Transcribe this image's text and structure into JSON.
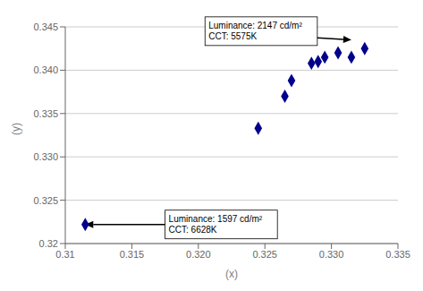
{
  "chart_data": {
    "type": "scatter",
    "x_label": "(x)",
    "y_label": "(y)",
    "x": [
      0.3115,
      0.3245,
      0.3265,
      0.327,
      0.3285,
      0.329,
      0.3295,
      0.3305,
      0.3315,
      0.3325
    ],
    "values": [
      0.3222,
      0.3333,
      0.337,
      0.3388,
      0.3408,
      0.341,
      0.3415,
      0.342,
      0.3415,
      0.3425
    ],
    "color": "#00008B",
    "marker": "diamond",
    "xlim": [
      0.31,
      0.335
    ],
    "ylim": [
      0.32,
      0.345
    ],
    "xticks": [
      0.31,
      0.315,
      {
        "value": 0.32,
        "label": "0.320"
      },
      0.325,
      {
        "value": 0.33,
        "label": "0.330"
      },
      0.335
    ],
    "yticks": [
      0.32,
      0.325,
      {
        "value": 0.33,
        "label": "0.330"
      },
      0.335,
      {
        "value": 0.34,
        "label": "0.340"
      },
      0.345
    ],
    "grid": true,
    "annotations": [
      {
        "text": "Luminance: 2147 cd/m²\nCCT: 5575K",
        "x": 0.3315,
        "y": 0.3435,
        "text_x": 0.3205,
        "text_y": 0.3445
      },
      {
        "text": "Luminance: 1597 cd/m²\nCCT: 6628K",
        "x": 0.3115,
        "y": 0.3222,
        "text_x": 0.3175,
        "text_y": 0.3222
      }
    ]
  }
}
